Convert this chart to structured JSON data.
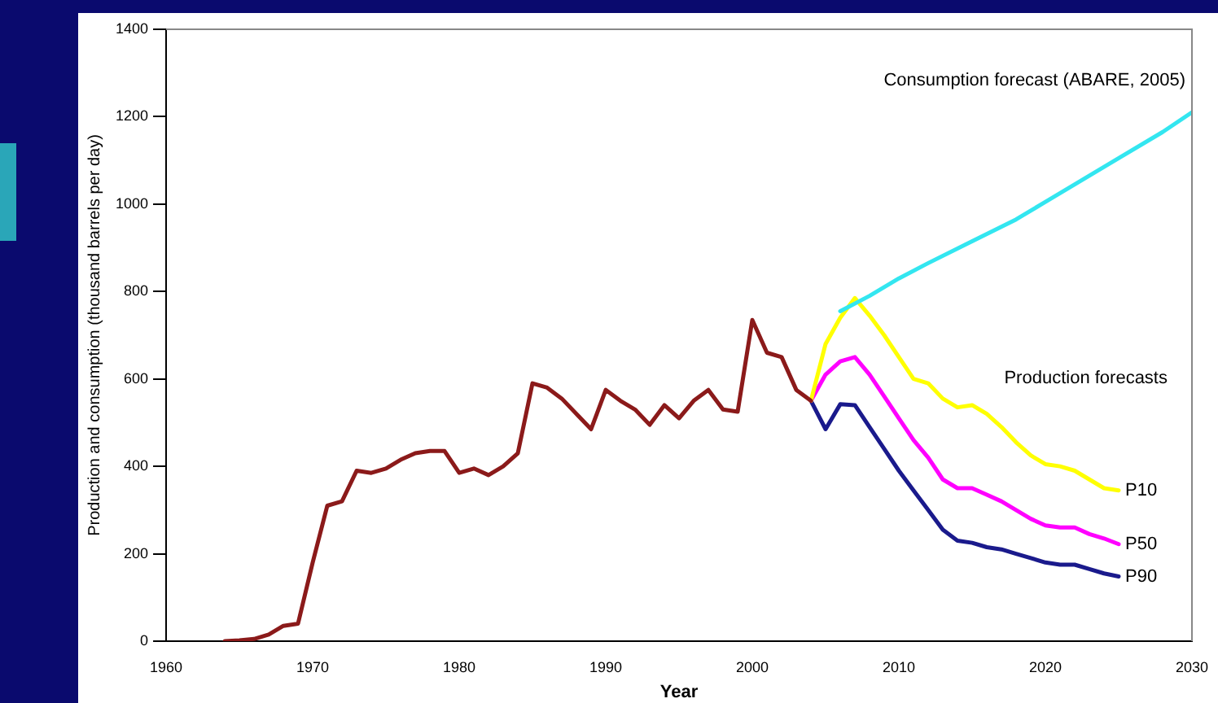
{
  "chart_data": {
    "type": "line",
    "xlabel": "Year",
    "ylabel": "Production and consumption (thousand barrels per day)",
    "xlim": [
      1960,
      2030
    ],
    "xticks": [
      1960,
      1970,
      1980,
      1990,
      2000,
      2010,
      2020,
      2030
    ],
    "ylim": [
      0,
      1400
    ],
    "yticks": [
      0,
      200,
      400,
      600,
      800,
      1000,
      1200,
      1400
    ],
    "grid": false,
    "legend": false,
    "marker": "none",
    "line_style": "solid",
    "annotations": [
      "Production forecasts"
    ],
    "series": [
      {
        "color": "#8b1a1a",
        "x": [
          1964,
          1965,
          1966,
          1967,
          1968,
          1969,
          1970,
          1971,
          1972,
          1973,
          1974,
          1975,
          1976,
          1977,
          1978,
          1979,
          1980,
          1981,
          1982,
          1983,
          1984,
          1985,
          1986,
          1987,
          1988,
          1989,
          1990,
          1991,
          1992,
          1993,
          1994,
          1995,
          1996,
          1997,
          1998,
          1999,
          2000,
          2001,
          2002,
          2003,
          2004
        ],
        "values": [
          0,
          2,
          5,
          15,
          35,
          40,
          180,
          310,
          320,
          390,
          385,
          395,
          415,
          430,
          435,
          435,
          385,
          395,
          380,
          400,
          430,
          590,
          580,
          555,
          520,
          485,
          575,
          550,
          530,
          495,
          540,
          510,
          550,
          575,
          530,
          525,
          735,
          660,
          650,
          575,
          550
        ]
      },
      {
        "name": "Consumption forecast (ABARE, 2005)",
        "color": "#33e6f0",
        "x": [
          2006,
          2008,
          2010,
          2012,
          2015,
          2018,
          2020,
          2022,
          2025,
          2028,
          2030
        ],
        "values": [
          755,
          790,
          830,
          865,
          915,
          965,
          1005,
          1045,
          1105,
          1165,
          1210
        ]
      },
      {
        "name": "P10",
        "color": "#ffff00",
        "x": [
          2004,
          2005,
          2006,
          2007,
          2008,
          2009,
          2010,
          2011,
          2012,
          2013,
          2014,
          2015,
          2016,
          2017,
          2018,
          2019,
          2020,
          2021,
          2022,
          2023,
          2024,
          2025
        ],
        "values": [
          550,
          680,
          740,
          785,
          745,
          700,
          650,
          600,
          590,
          555,
          535,
          540,
          520,
          490,
          455,
          425,
          405,
          400,
          390,
          370,
          350,
          345
        ]
      },
      {
        "name": "P50",
        "color": "#ff00ff",
        "x": [
          2004,
          2005,
          2006,
          2007,
          2008,
          2009,
          2010,
          2011,
          2012,
          2013,
          2014,
          2015,
          2016,
          2017,
          2018,
          2019,
          2020,
          2021,
          2022,
          2023,
          2024,
          2025
        ],
        "values": [
          550,
          610,
          640,
          650,
          610,
          560,
          510,
          460,
          420,
          370,
          350,
          350,
          335,
          320,
          300,
          280,
          265,
          260,
          260,
          245,
          235,
          222
        ]
      },
      {
        "name": "P90",
        "color": "#1a1a8c",
        "x": [
          2004,
          2005,
          2006,
          2007,
          2008,
          2009,
          2010,
          2011,
          2012,
          2013,
          2014,
          2015,
          2016,
          2017,
          2018,
          2019,
          2020,
          2021,
          2022,
          2023,
          2024,
          2025
        ],
        "values": [
          550,
          485,
          542,
          540,
          490,
          440,
          390,
          345,
          300,
          255,
          230,
          225,
          215,
          210,
          200,
          190,
          180,
          175,
          175,
          165,
          155,
          148
        ]
      }
    ]
  }
}
